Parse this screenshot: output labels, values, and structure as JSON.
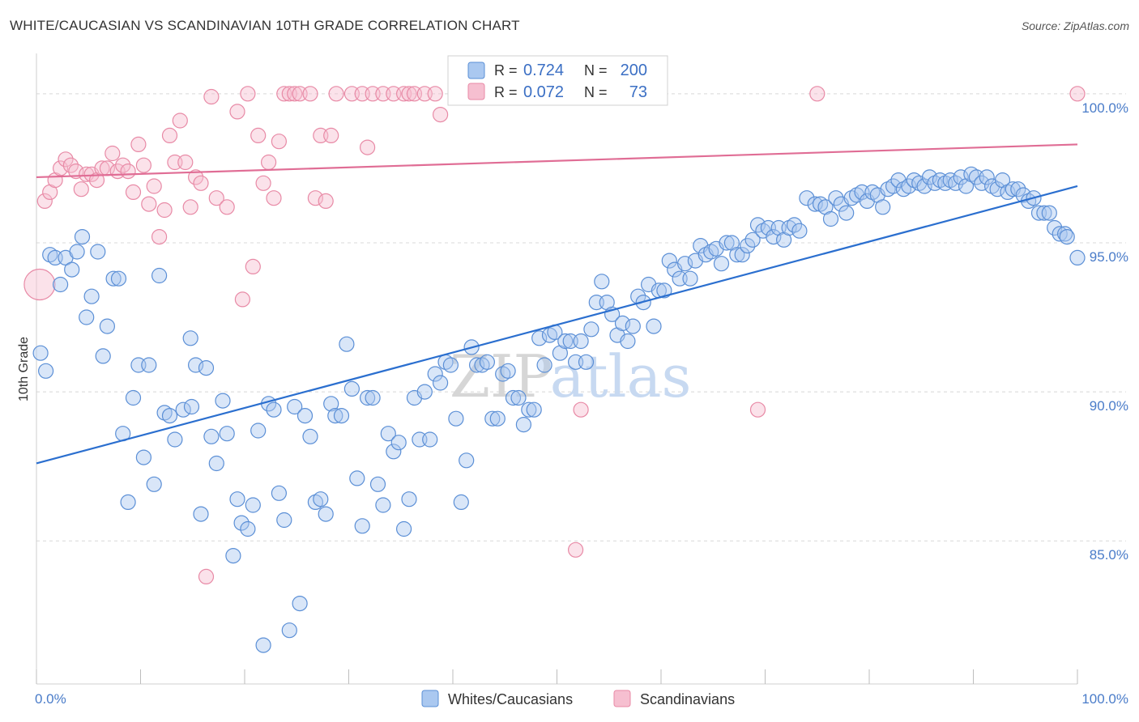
{
  "title": "WHITE/CAUCASIAN VS SCANDINAVIAN 10TH GRADE CORRELATION CHART",
  "source": "Source: ZipAtlas.com",
  "watermark": {
    "part1": "ZIP",
    "part2": "atlas"
  },
  "colors": {
    "blue": "#5b8fd6",
    "blue_fill": "#aac8f0",
    "blue_line": "#2b6fcf",
    "pink": "#e88aa6",
    "pink_fill": "#f6bfd0",
    "pink_line": "#e06d95",
    "grid": "#d8d8d8",
    "tick_text": "#4a7cc9"
  },
  "legend_box": {
    "r_label": "R =",
    "n_label": "N =",
    "rows": [
      {
        "series": "blue",
        "r": "0.724",
        "n": "200"
      },
      {
        "series": "pink",
        "r": "0.072",
        "n": "73"
      }
    ]
  },
  "bottom_legend": [
    {
      "series": "blue",
      "label": "Whites/Caucasians"
    },
    {
      "series": "pink",
      "label": "Scandinavians"
    }
  ],
  "chart_data": {
    "type": "scatter",
    "ylabel": "10th Grade",
    "xlim": [
      0,
      100
    ],
    "ylim": [
      80.2,
      101.0
    ],
    "x_tick_labels": [
      {
        "value": 0,
        "label": "0.0%"
      },
      {
        "value": 100,
        "label": "100.0%"
      }
    ],
    "y_tick_labels": [
      {
        "value": 85,
        "label": "85.0%"
      },
      {
        "value": 90,
        "label": "90.0%"
      },
      {
        "value": 95,
        "label": "95.0%"
      },
      {
        "value": 100,
        "label": "100.0%"
      }
    ],
    "grid": true,
    "series": [
      {
        "name": "Whites/Caucasians",
        "color": "blue",
        "R": 0.724,
        "N": 200,
        "trendline": {
          "x": [
            0,
            100
          ],
          "y": [
            87.6,
            96.9
          ]
        },
        "points": [
          [
            0.4,
            91.3
          ],
          [
            0.9,
            90.7
          ],
          [
            1.3,
            94.6
          ],
          [
            1.8,
            94.5
          ],
          [
            2.3,
            93.6
          ],
          [
            2.8,
            94.5
          ],
          [
            3.4,
            94.1
          ],
          [
            3.9,
            94.7
          ],
          [
            4.4,
            95.2
          ],
          [
            4.8,
            92.5
          ],
          [
            5.3,
            93.2
          ],
          [
            5.9,
            94.7
          ],
          [
            6.4,
            91.2
          ],
          [
            6.8,
            92.2
          ],
          [
            7.4,
            93.8
          ],
          [
            7.9,
            93.8
          ],
          [
            8.3,
            88.6
          ],
          [
            8.8,
            86.3
          ],
          [
            9.3,
            89.8
          ],
          [
            9.8,
            90.9
          ],
          [
            10.3,
            87.8
          ],
          [
            10.8,
            90.9
          ],
          [
            11.3,
            86.9
          ],
          [
            11.8,
            93.9
          ],
          [
            12.3,
            89.3
          ],
          [
            12.8,
            89.2
          ],
          [
            13.3,
            88.4
          ],
          [
            14.1,
            89.4
          ],
          [
            14.8,
            91.8
          ],
          [
            14.9,
            89.5
          ],
          [
            15.3,
            90.9
          ],
          [
            15.8,
            85.9
          ],
          [
            16.3,
            90.8
          ],
          [
            16.8,
            88.5
          ],
          [
            17.3,
            87.6
          ],
          [
            17.9,
            89.7
          ],
          [
            18.3,
            88.6
          ],
          [
            18.9,
            84.5
          ],
          [
            19.3,
            86.4
          ],
          [
            19.7,
            85.6
          ],
          [
            20.3,
            85.4
          ],
          [
            20.8,
            86.2
          ],
          [
            21.3,
            88.7
          ],
          [
            21.8,
            81.5
          ],
          [
            22.3,
            89.6
          ],
          [
            22.8,
            89.4
          ],
          [
            23.3,
            86.6
          ],
          [
            23.8,
            85.7
          ],
          [
            24.3,
            82.0
          ],
          [
            24.8,
            89.5
          ],
          [
            25.3,
            82.9
          ],
          [
            25.8,
            89.2
          ],
          [
            26.3,
            88.5
          ],
          [
            26.8,
            86.3
          ],
          [
            27.3,
            86.4
          ],
          [
            27.8,
            85.9
          ],
          [
            28.3,
            89.6
          ],
          [
            28.7,
            89.2
          ],
          [
            29.3,
            89.2
          ],
          [
            29.8,
            91.6
          ],
          [
            30.3,
            90.1
          ],
          [
            30.8,
            87.1
          ],
          [
            31.3,
            85.5
          ],
          [
            31.8,
            89.8
          ],
          [
            32.3,
            89.8
          ],
          [
            32.8,
            86.9
          ],
          [
            33.3,
            86.2
          ],
          [
            33.8,
            88.6
          ],
          [
            34.3,
            88.0
          ],
          [
            34.8,
            88.3
          ],
          [
            35.3,
            85.4
          ],
          [
            35.8,
            86.4
          ],
          [
            36.3,
            89.8
          ],
          [
            36.8,
            88.4
          ],
          [
            37.3,
            90.0
          ],
          [
            37.8,
            88.4
          ],
          [
            38.3,
            90.6
          ],
          [
            38.8,
            90.3
          ],
          [
            39.3,
            91.0
          ],
          [
            39.8,
            90.9
          ],
          [
            40.3,
            89.1
          ],
          [
            40.8,
            86.3
          ],
          [
            41.3,
            87.7
          ],
          [
            41.8,
            91.5
          ],
          [
            42.3,
            90.9
          ],
          [
            42.8,
            90.9
          ],
          [
            43.3,
            91.0
          ],
          [
            43.8,
            89.1
          ],
          [
            44.3,
            89.1
          ],
          [
            44.8,
            90.6
          ],
          [
            45.3,
            90.7
          ],
          [
            45.8,
            89.8
          ],
          [
            46.3,
            89.8
          ],
          [
            46.8,
            88.9
          ],
          [
            47.3,
            89.4
          ],
          [
            47.8,
            89.4
          ],
          [
            48.3,
            91.8
          ],
          [
            48.8,
            90.9
          ],
          [
            49.3,
            91.9
          ],
          [
            49.8,
            92.0
          ],
          [
            50.3,
            91.3
          ],
          [
            50.8,
            91.7
          ],
          [
            51.3,
            91.7
          ],
          [
            51.8,
            91.0
          ],
          [
            52.3,
            91.7
          ],
          [
            52.8,
            91.0
          ],
          [
            53.3,
            92.1
          ],
          [
            53.8,
            93.0
          ],
          [
            54.3,
            93.7
          ],
          [
            54.8,
            93.0
          ],
          [
            55.3,
            92.6
          ],
          [
            55.8,
            91.9
          ],
          [
            56.3,
            92.3
          ],
          [
            56.8,
            91.7
          ],
          [
            57.3,
            92.2
          ],
          [
            57.8,
            93.2
          ],
          [
            58.3,
            93.0
          ],
          [
            58.8,
            93.6
          ],
          [
            59.3,
            92.2
          ],
          [
            59.8,
            93.4
          ],
          [
            60.3,
            93.4
          ],
          [
            60.8,
            94.4
          ],
          [
            61.3,
            94.1
          ],
          [
            61.8,
            93.8
          ],
          [
            62.3,
            94.3
          ],
          [
            62.8,
            93.8
          ],
          [
            63.3,
            94.4
          ],
          [
            63.8,
            94.9
          ],
          [
            64.3,
            94.6
          ],
          [
            64.8,
            94.7
          ],
          [
            65.3,
            94.8
          ],
          [
            65.8,
            94.3
          ],
          [
            66.3,
            95.0
          ],
          [
            66.8,
            95.0
          ],
          [
            67.3,
            94.6
          ],
          [
            67.8,
            94.6
          ],
          [
            68.3,
            94.9
          ],
          [
            68.8,
            95.1
          ],
          [
            69.3,
            95.6
          ],
          [
            69.8,
            95.4
          ],
          [
            70.3,
            95.5
          ],
          [
            70.8,
            95.2
          ],
          [
            71.3,
            95.5
          ],
          [
            71.8,
            95.1
          ],
          [
            72.3,
            95.5
          ],
          [
            72.8,
            95.6
          ],
          [
            73.3,
            95.4
          ],
          [
            74.0,
            96.5
          ],
          [
            74.8,
            96.3
          ],
          [
            75.3,
            96.3
          ],
          [
            75.8,
            96.2
          ],
          [
            76.3,
            95.8
          ],
          [
            76.8,
            96.5
          ],
          [
            77.3,
            96.3
          ],
          [
            77.8,
            96.0
          ],
          [
            78.3,
            96.5
          ],
          [
            78.8,
            96.6
          ],
          [
            79.3,
            96.7
          ],
          [
            79.8,
            96.4
          ],
          [
            80.3,
            96.7
          ],
          [
            80.8,
            96.6
          ],
          [
            81.3,
            96.2
          ],
          [
            81.8,
            96.8
          ],
          [
            82.3,
            96.9
          ],
          [
            82.8,
            97.1
          ],
          [
            83.3,
            96.8
          ],
          [
            83.8,
            96.9
          ],
          [
            84.3,
            97.1
          ],
          [
            84.8,
            97.0
          ],
          [
            85.3,
            96.9
          ],
          [
            85.8,
            97.2
          ],
          [
            86.3,
            97.0
          ],
          [
            86.8,
            97.1
          ],
          [
            87.3,
            97.0
          ],
          [
            87.8,
            97.1
          ],
          [
            88.3,
            97.0
          ],
          [
            88.8,
            97.2
          ],
          [
            89.3,
            96.9
          ],
          [
            89.8,
            97.3
          ],
          [
            90.3,
            97.2
          ],
          [
            90.8,
            97.0
          ],
          [
            91.3,
            97.2
          ],
          [
            91.8,
            96.9
          ],
          [
            92.3,
            96.8
          ],
          [
            92.8,
            97.1
          ],
          [
            93.3,
            96.7
          ],
          [
            93.8,
            96.8
          ],
          [
            94.3,
            96.8
          ],
          [
            94.8,
            96.6
          ],
          [
            95.3,
            96.4
          ],
          [
            95.8,
            96.5
          ],
          [
            96.3,
            96.0
          ],
          [
            96.8,
            96.0
          ],
          [
            97.3,
            96.0
          ],
          [
            97.8,
            95.5
          ],
          [
            98.3,
            95.3
          ],
          [
            98.8,
            95.3
          ],
          [
            99.0,
            95.2
          ],
          [
            100.0,
            94.5
          ]
        ]
      },
      {
        "name": "Scandinavians",
        "color": "pink",
        "R": 0.072,
        "N": 73,
        "trendline": {
          "x": [
            0,
            100
          ],
          "y": [
            97.2,
            98.3
          ]
        },
        "points": [
          [
            0.3,
            93.6
          ],
          [
            0.8,
            96.4
          ],
          [
            1.3,
            96.7
          ],
          [
            1.8,
            97.1
          ],
          [
            2.3,
            97.5
          ],
          [
            2.8,
            97.8
          ],
          [
            3.3,
            97.6
          ],
          [
            3.8,
            97.4
          ],
          [
            4.3,
            96.8
          ],
          [
            4.8,
            97.3
          ],
          [
            5.3,
            97.3
          ],
          [
            5.8,
            97.1
          ],
          [
            6.3,
            97.5
          ],
          [
            6.8,
            97.5
          ],
          [
            7.3,
            98.0
          ],
          [
            7.8,
            97.4
          ],
          [
            8.3,
            97.6
          ],
          [
            8.8,
            97.4
          ],
          [
            9.3,
            96.7
          ],
          [
            9.8,
            98.3
          ],
          [
            10.3,
            97.6
          ],
          [
            10.8,
            96.3
          ],
          [
            11.3,
            96.9
          ],
          [
            11.8,
            95.2
          ],
          [
            12.3,
            96.1
          ],
          [
            12.8,
            98.6
          ],
          [
            13.3,
            97.7
          ],
          [
            13.8,
            99.1
          ],
          [
            14.3,
            97.7
          ],
          [
            14.8,
            96.2
          ],
          [
            15.3,
            97.2
          ],
          [
            15.8,
            97.0
          ],
          [
            16.3,
            83.8
          ],
          [
            16.8,
            99.9
          ],
          [
            17.3,
            96.5
          ],
          [
            18.3,
            96.2
          ],
          [
            19.3,
            99.4
          ],
          [
            19.8,
            93.1
          ],
          [
            20.3,
            100.0
          ],
          [
            20.8,
            94.2
          ],
          [
            21.3,
            98.6
          ],
          [
            21.8,
            97.0
          ],
          [
            22.3,
            97.7
          ],
          [
            22.8,
            96.5
          ],
          [
            23.3,
            98.4
          ],
          [
            23.8,
            100.0
          ],
          [
            24.3,
            100.0
          ],
          [
            24.8,
            100.0
          ],
          [
            25.3,
            100.0
          ],
          [
            26.3,
            100.0
          ],
          [
            26.8,
            96.5
          ],
          [
            27.3,
            98.6
          ],
          [
            27.8,
            96.4
          ],
          [
            28.3,
            98.6
          ],
          [
            28.8,
            100.0
          ],
          [
            30.3,
            100.0
          ],
          [
            31.3,
            100.0
          ],
          [
            31.8,
            98.2
          ],
          [
            32.3,
            100.0
          ],
          [
            33.3,
            100.0
          ],
          [
            34.3,
            100.0
          ],
          [
            35.3,
            100.0
          ],
          [
            35.8,
            100.0
          ],
          [
            36.3,
            100.0
          ],
          [
            37.3,
            100.0
          ],
          [
            38.3,
            100.0
          ],
          [
            38.8,
            99.3
          ],
          [
            40.3,
            100.0
          ],
          [
            51.8,
            84.7
          ],
          [
            52.3,
            89.4
          ],
          [
            57.3,
            100.0
          ],
          [
            69.3,
            89.4
          ],
          [
            75.0,
            100.0
          ],
          [
            100.0,
            100.0
          ]
        ]
      }
    ]
  }
}
